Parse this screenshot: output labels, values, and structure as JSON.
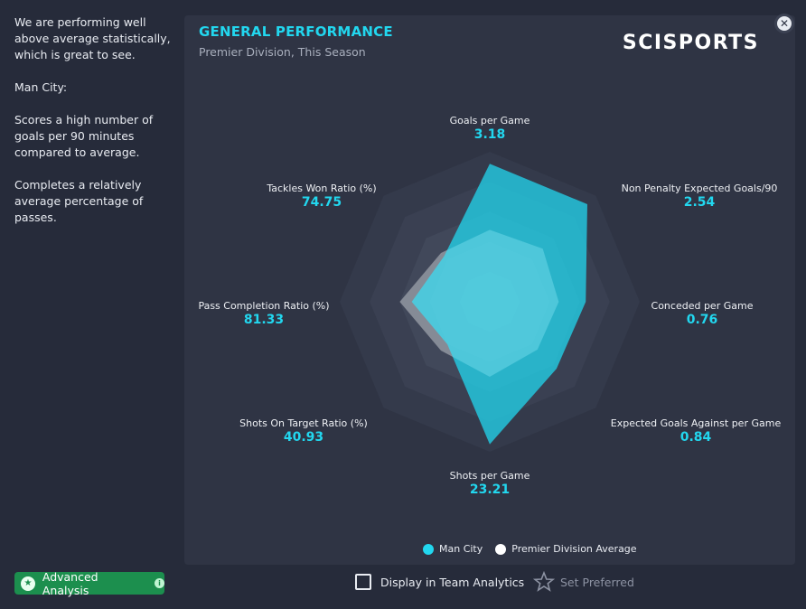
{
  "summary": {
    "p1": "We are performing well above average statistically, which is great to see.",
    "p2": "Man City:",
    "p3": "Scores a high number of goals per 90 minutes compared to average.",
    "p4": "Completes a relatively average percentage of passes."
  },
  "card": {
    "title": "GENERAL PERFORMANCE",
    "subtitle": "Premier Division, This Season",
    "brand": "SCISPORTS"
  },
  "close_icon": "close-icon",
  "chart_data": {
    "type": "radar",
    "axes": [
      {
        "name": "Goals per Game",
        "value": "3.18"
      },
      {
        "name": "Non Penalty Expected Goals/90",
        "value": "2.54"
      },
      {
        "name": "Conceded per Game",
        "value": "0.76"
      },
      {
        "name": "Expected Goals Against per Game",
        "value": "0.84"
      },
      {
        "name": "Shots per Game",
        "value": "23.21"
      },
      {
        "name": "Shots On Target Ratio (%)",
        "value": "40.93"
      },
      {
        "name": "Pass Completion Ratio (%)",
        "value": "81.33"
      },
      {
        "name": "Tackles Won Ratio (%)",
        "value": "74.75"
      }
    ],
    "series": [
      {
        "name": "Man City",
        "color": "#22d7ef",
        "normalized": [
          0.92,
          0.92,
          0.64,
          0.63,
          0.95,
          0.4,
          0.52,
          0.43
        ]
      },
      {
        "name": "Premier Division Average",
        "color": "#ffffff",
        "normalized": [
          0.48,
          0.5,
          0.46,
          0.45,
          0.5,
          0.46,
          0.6,
          0.46
        ]
      }
    ],
    "rings": 5
  },
  "legend": {
    "man_city": "Man City",
    "average": "Premier Division Average",
    "man_city_color": "#22d7ef",
    "average_color": "#ffffff"
  },
  "footer": {
    "advanced_analysis": "Advanced Analysis",
    "display_in_team_analytics": "Display in Team Analytics",
    "set_preferred": "Set Preferred"
  }
}
